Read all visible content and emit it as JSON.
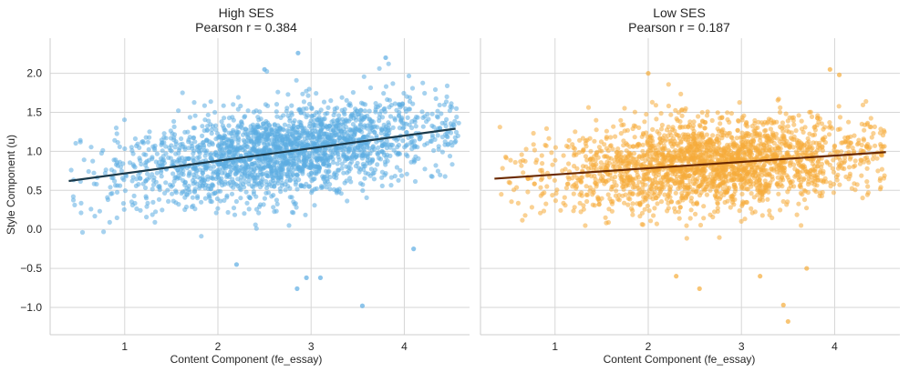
{
  "figure": {
    "ylabel": "Style Component (u)",
    "xlim": [
      0.2,
      4.7
    ],
    "ylim": [
      -1.35,
      2.45
    ],
    "x_ticks": [
      1,
      2,
      3,
      4
    ],
    "y_ticks": [
      -1.0,
      -0.5,
      0.0,
      0.5,
      1.0,
      1.5,
      2.0
    ],
    "y_tick_labels": [
      "−1.0",
      "−0.5",
      "0.0",
      "0.5",
      "1.0",
      "1.5",
      "2.0"
    ],
    "grid": true
  },
  "chart_data": [
    {
      "type": "scatter",
      "title_line1": "High SES",
      "title_line2": "Pearson r = 0.384",
      "xlabel": "Content Component (fe_essay)",
      "point_color": "#5dade2",
      "line_color": "#1b3a4b",
      "approx_points": 9000,
      "x_range": [
        0.4,
        4.6
      ],
      "y_center_at_x_min": 0.62,
      "y_center_at_x_max": 1.29,
      "y_spread": 0.28,
      "fit_line": {
        "x": [
          0.4,
          4.55
        ],
        "y": [
          0.62,
          1.29
        ]
      },
      "outliers": [
        {
          "x": 3.55,
          "y": -0.98
        },
        {
          "x": 2.85,
          "y": -0.76
        },
        {
          "x": 2.95,
          "y": -0.62
        },
        {
          "x": 3.1,
          "y": -0.62
        },
        {
          "x": 2.2,
          "y": -0.45
        },
        {
          "x": 4.1,
          "y": -0.25
        },
        {
          "x": 2.86,
          "y": 2.26
        },
        {
          "x": 3.8,
          "y": 2.2
        },
        {
          "x": 2.5,
          "y": 2.05
        }
      ]
    },
    {
      "type": "scatter",
      "title_line1": "Low SES",
      "title_line2": "Pearson r = 0.187",
      "xlabel": "Content Component (fe_essay)",
      "point_color": "#f5ac3b",
      "line_color": "#6b2a00",
      "approx_points": 9000,
      "x_range": [
        0.4,
        4.55
      ],
      "y_center_at_x_min": 0.65,
      "y_center_at_x_max": 0.99,
      "y_spread": 0.28,
      "fit_line": {
        "x": [
          0.35,
          4.55
        ],
        "y": [
          0.65,
          0.99
        ]
      },
      "outliers": [
        {
          "x": 3.5,
          "y": -1.18
        },
        {
          "x": 3.45,
          "y": -0.97
        },
        {
          "x": 2.55,
          "y": -0.76
        },
        {
          "x": 2.3,
          "y": -0.6
        },
        {
          "x": 3.2,
          "y": -0.6
        },
        {
          "x": 3.7,
          "y": -0.5
        },
        {
          "x": 2.0,
          "y": 2.0
        },
        {
          "x": 3.95,
          "y": 2.05
        },
        {
          "x": 4.05,
          "y": 1.98
        }
      ]
    }
  ]
}
